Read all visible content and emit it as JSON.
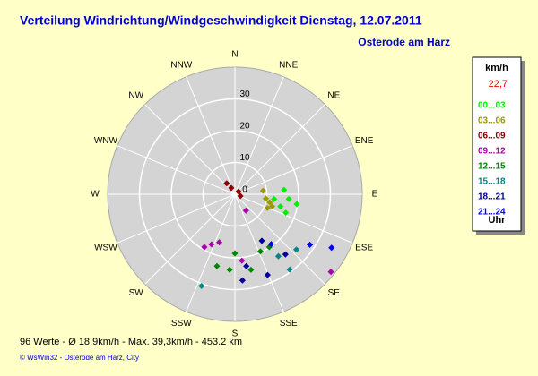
{
  "chart_data": {
    "type": "polar",
    "title": "Verteilung Windrichtung/Windgeschwindigkeit  Dienstag, 12.07.2011",
    "subtitle": "Osterode am Harz",
    "directions": [
      "N",
      "NNE",
      "NE",
      "ENE",
      "E",
      "ESE",
      "SE",
      "SSE",
      "S",
      "SSW",
      "SW",
      "WSW",
      "W",
      "WNW",
      "NW",
      "NNW"
    ],
    "rlim": [
      0,
      40
    ],
    "rticks": [
      0,
      10,
      20,
      30
    ],
    "legend_title": "km/h",
    "current_value": "22,7",
    "legend_footer": "Uhr",
    "series": [
      {
        "name": "00...03",
        "color": "#00ee00",
        "directions": [
          85,
          95,
          105,
          110,
          99,
          97
        ],
        "values": [
          15.5,
          17,
          14.8,
          17,
          19.7,
          12.4
        ]
      },
      {
        "name": "03...06",
        "color": "#999900",
        "directions": [
          83,
          103,
          113,
          108,
          98
        ],
        "values": [
          8.9,
          11.2,
          11.1,
          12.3,
          9.8
        ]
      },
      {
        "name": "06...09",
        "color": "#880000",
        "directions": [
          323,
          53,
          330,
          108
        ],
        "values": [
          4.3,
          1.4,
          2.3,
          1.8
        ]
      },
      {
        "name": "09...12",
        "color": "#aa00aa",
        "directions": [
          146,
          205,
          210,
          198,
          174,
          129
        ],
        "values": [
          6.2,
          17.4,
          19.2,
          15.9,
          21,
          38.8
        ]
      },
      {
        "name": "12...15",
        "color": "#008800",
        "directions": [
          194,
          180,
          156,
          168,
          184,
          147
        ],
        "values": [
          23.3,
          18.6,
          19.7,
          24.3,
          23.8,
          19.8
        ]
      },
      {
        "name": "15...18",
        "color": "#008888",
        "directions": [
          144,
          132,
          200,
          145
        ],
        "values": [
          29.3,
          26,
          30.7,
          23.8
        ]
      },
      {
        "name": "18...21",
        "color": "#000099",
        "directions": [
          150,
          140,
          158,
          175,
          171
        ],
        "values": [
          16.9,
          24.7,
          27.4,
          27.2,
          22.9
        ]
      },
      {
        "name": "21...24",
        "color": "#0000ff",
        "directions": [
          124,
          119,
          144
        ],
        "values": [
          28.4,
          34.7,
          19.4
        ]
      }
    ],
    "footer": "96 Werte  -  Ø 18,9km/h  -  Max. 39,3km/h  -  453.2 km",
    "copyright": "© WsWin32  -  Osterode am Harz, City"
  }
}
